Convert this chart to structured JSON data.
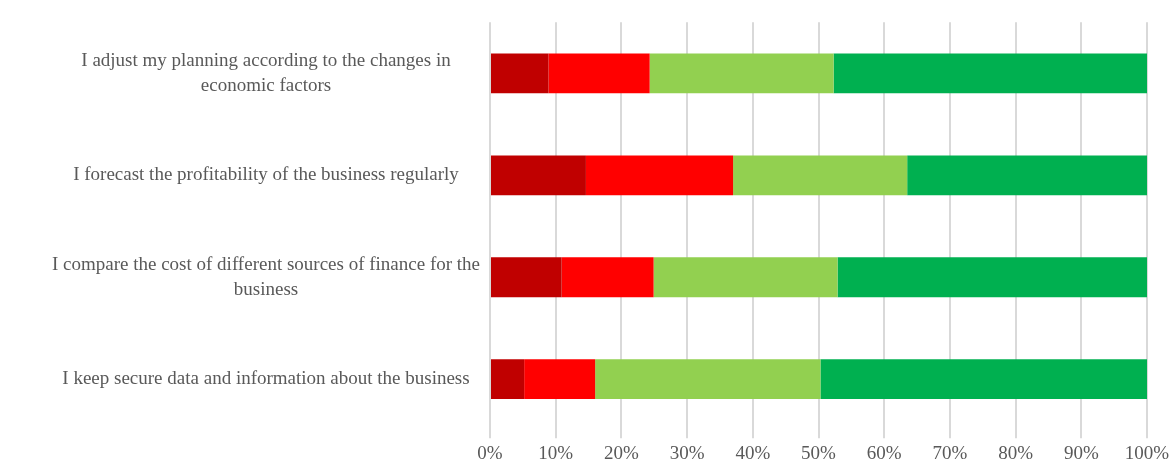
{
  "chart_data": {
    "type": "bar",
    "orientation": "horizontal",
    "stacked": true,
    "categories": [
      "I adjust my planning according to the changes in economic factors",
      "I forecast the profitability of the business regularly",
      "I compare the cost of different sources of finance for the business",
      "I keep secure data and information about the business"
    ],
    "series": [
      {
        "color": "#c00000",
        "values": [
          8.9,
          14.6,
          10.9,
          5.2
        ]
      },
      {
        "color": "#ff0000",
        "values": [
          15.4,
          22.4,
          14.0,
          10.8
        ]
      },
      {
        "color": "#92d050",
        "values": [
          28.0,
          26.5,
          28.0,
          34.3
        ]
      },
      {
        "color": "#00b050",
        "values": [
          47.7,
          36.5,
          47.1,
          49.7
        ]
      }
    ],
    "xlim": [
      0,
      100
    ],
    "xticks": [
      {
        "value": 0,
        "label": "0%"
      },
      {
        "value": 10,
        "label": "10%"
      },
      {
        "value": 20,
        "label": "20%"
      },
      {
        "value": 30,
        "label": "30%"
      },
      {
        "value": 40,
        "label": "40%"
      },
      {
        "value": 50,
        "label": "50%"
      },
      {
        "value": 60,
        "label": "60%"
      },
      {
        "value": 70,
        "label": "70%"
      },
      {
        "value": 80,
        "label": "80%"
      },
      {
        "value": 90,
        "label": "90%"
      },
      {
        "value": 100,
        "label": "100%"
      }
    ],
    "grid": "x",
    "legend": false
  }
}
